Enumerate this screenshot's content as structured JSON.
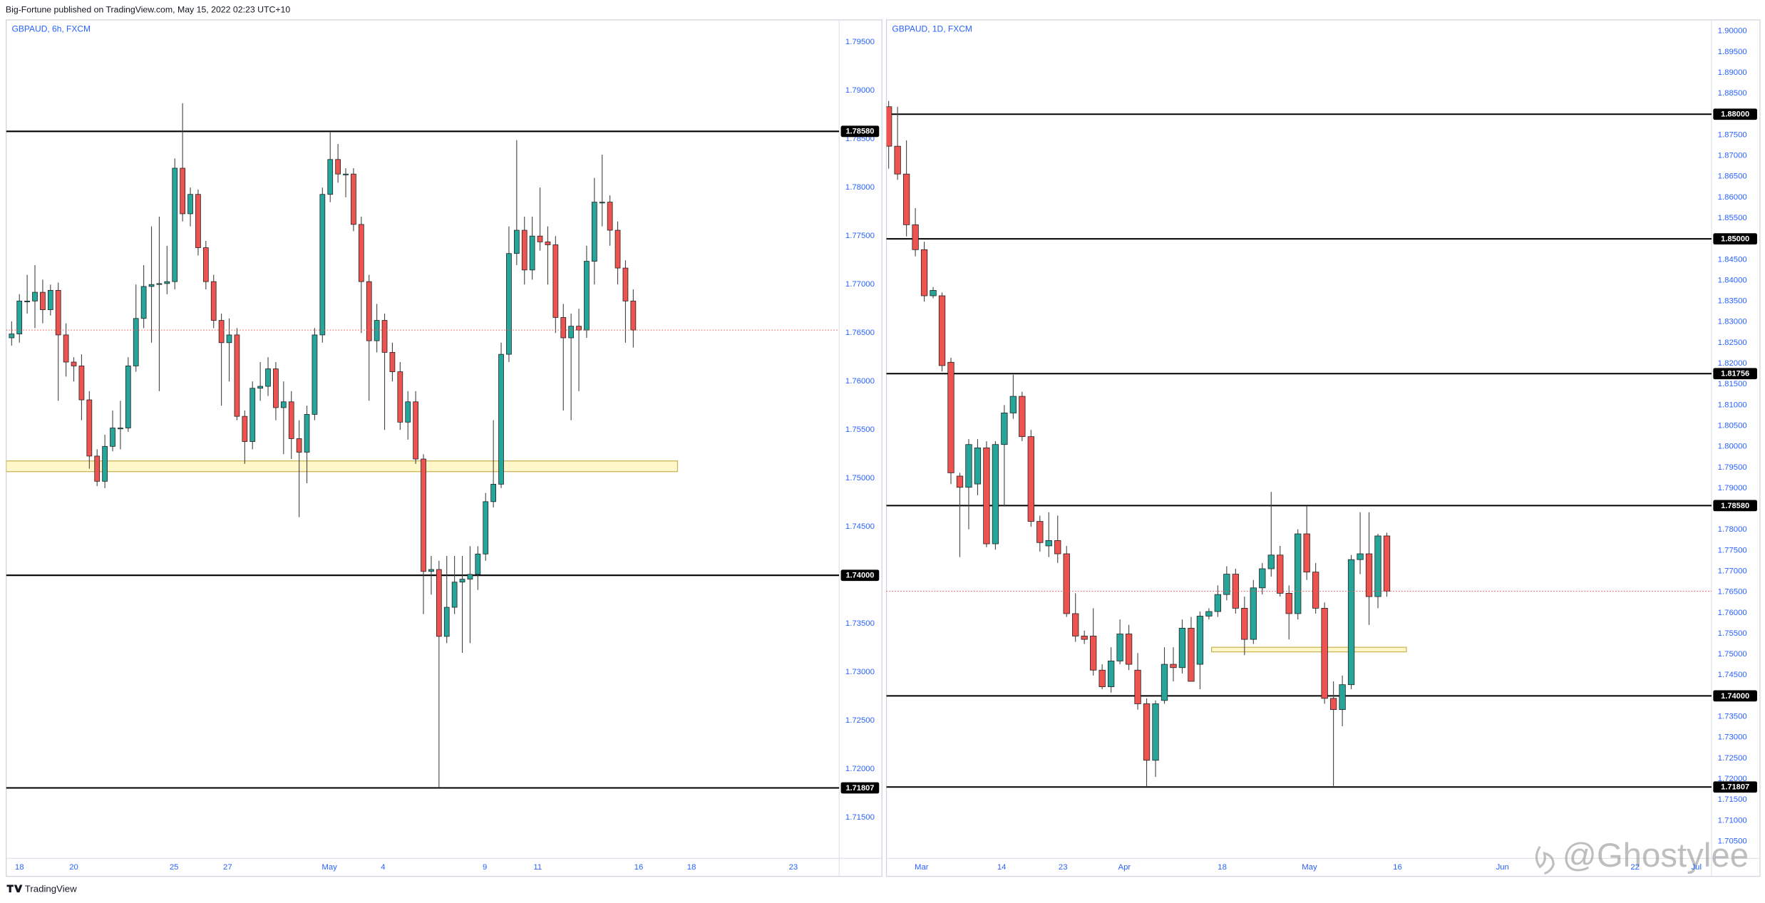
{
  "header": {
    "text": "Big-Fortune published on TradingView.com, May 15, 2022 02:23 UTC+10"
  },
  "footer": {
    "brand": "TradingView",
    "watermark": "@Ghostylee"
  },
  "chart_data": [
    {
      "type": "candlestick",
      "title": "GBPAUD, 6h, FXCM",
      "up_color": "#26a69a",
      "down_color": "#ef5350",
      "grid": false,
      "open": [
        1.7645,
        1.7649,
        1.7683,
        1.7683,
        1.7692,
        1.7674,
        1.7694,
        1.7648,
        1.762,
        1.7616,
        1.7581,
        1.7523,
        1.7497,
        1.7533,
        1.7552,
        1.7552,
        1.7616,
        1.7665,
        1.7698,
        1.77,
        1.7701,
        1.7703,
        1.782,
        1.7773,
        1.7793,
        1.7738,
        1.7703,
        1.7663,
        1.764,
        1.7648,
        1.7564,
        1.7538,
        1.7593,
        1.7595,
        1.7613,
        1.7573,
        1.7579,
        1.7541,
        1.7527,
        1.7566,
        1.7648,
        1.7793,
        1.7829,
        1.7814,
        1.7814,
        1.7762,
        1.7703,
        1.7642,
        1.7663,
        1.763,
        1.761,
        1.7558,
        1.7579,
        1.752,
        1.7404,
        1.7406,
        1.7337,
        1.7367,
        1.7393,
        1.7396,
        1.7401,
        1.7422,
        1.7476,
        1.7494,
        1.7628,
        1.7732,
        1.7756,
        1.7715,
        1.775,
        1.7744,
        1.7741,
        1.7666,
        1.7645,
        1.7657,
        1.7653,
        1.7724,
        1.7785,
        1.7785,
        1.7756,
        1.7717,
        1.7683
      ],
      "high": [
        1.7662,
        1.769,
        1.771,
        1.772,
        1.7705,
        1.77,
        1.7702,
        1.766,
        1.7625,
        1.7628,
        1.759,
        1.753,
        1.7545,
        1.757,
        1.758,
        1.7625,
        1.77,
        1.772,
        1.776,
        1.777,
        1.774,
        1.783,
        1.7887,
        1.78,
        1.7798,
        1.7745,
        1.771,
        1.767,
        1.7665,
        1.7655,
        1.757,
        1.76,
        1.762,
        1.7625,
        1.762,
        1.76,
        1.759,
        1.756,
        1.7575,
        1.7655,
        1.78,
        1.7857,
        1.7845,
        1.782,
        1.782,
        1.777,
        1.771,
        1.768,
        1.767,
        1.764,
        1.762,
        1.759,
        1.759,
        1.7525,
        1.742,
        1.7415,
        1.742,
        1.742,
        1.742,
        1.743,
        1.743,
        1.7485,
        1.756,
        1.764,
        1.776,
        1.7849,
        1.777,
        1.777,
        1.78,
        1.776,
        1.775,
        1.768,
        1.767,
        1.7675,
        1.774,
        1.781,
        1.7834,
        1.7792,
        1.7765,
        1.7725,
        1.7695
      ],
      "low": [
        1.7637,
        1.764,
        1.767,
        1.7655,
        1.766,
        1.7668,
        1.758,
        1.7605,
        1.76,
        1.756,
        1.751,
        1.7492,
        1.749,
        1.7528,
        1.753,
        1.7548,
        1.761,
        1.7655,
        1.764,
        1.759,
        1.769,
        1.7695,
        1.7765,
        1.776,
        1.773,
        1.7695,
        1.7655,
        1.7575,
        1.76,
        1.756,
        1.7515,
        1.753,
        1.758,
        1.7585,
        1.756,
        1.7525,
        1.752,
        1.746,
        1.7495,
        1.756,
        1.764,
        1.7785,
        1.7805,
        1.779,
        1.7755,
        1.765,
        1.758,
        1.763,
        1.755,
        1.76,
        1.755,
        1.754,
        1.7515,
        1.736,
        1.738,
        1.7181,
        1.733,
        1.736,
        1.732,
        1.733,
        1.7385,
        1.7415,
        1.747,
        1.749,
        1.762,
        1.772,
        1.77,
        1.7705,
        1.7735,
        1.77,
        1.765,
        1.757,
        1.756,
        1.759,
        1.7645,
        1.77,
        1.776,
        1.774,
        1.77,
        1.764,
        1.7635
      ],
      "close": [
        1.7649,
        1.7683,
        1.7683,
        1.7692,
        1.7674,
        1.7694,
        1.7648,
        1.762,
        1.7616,
        1.7581,
        1.7523,
        1.7497,
        1.7533,
        1.7552,
        1.7552,
        1.7616,
        1.7665,
        1.7698,
        1.77,
        1.7701,
        1.7703,
        1.782,
        1.7773,
        1.7793,
        1.7738,
        1.7703,
        1.7663,
        1.764,
        1.7648,
        1.7564,
        1.7538,
        1.7593,
        1.7595,
        1.7613,
        1.7573,
        1.7579,
        1.7541,
        1.7527,
        1.7566,
        1.7648,
        1.7793,
        1.7829,
        1.7814,
        1.7814,
        1.7762,
        1.7703,
        1.7642,
        1.7663,
        1.763,
        1.761,
        1.7558,
        1.7579,
        1.752,
        1.7404,
        1.7406,
        1.7337,
        1.7367,
        1.7393,
        1.7396,
        1.7401,
        1.7422,
        1.7476,
        1.7494,
        1.7628,
        1.7732,
        1.7756,
        1.7715,
        1.775,
        1.7744,
        1.7741,
        1.7666,
        1.7645,
        1.7657,
        1.7653,
        1.7724,
        1.7785,
        1.7785,
        1.7756,
        1.7717,
        1.7683,
        1.7653
      ],
      "xlim": [
        -0.7,
        106.5
      ],
      "xticks": [
        {
          "value": 1.0,
          "label": "18"
        },
        {
          "value": 8.0,
          "label": "20"
        },
        {
          "value": 20.9,
          "label": "25"
        },
        {
          "value": 27.8,
          "label": "27"
        },
        {
          "value": 40.9,
          "label": "May"
        },
        {
          "value": 47.8,
          "label": "4"
        },
        {
          "value": 60.9,
          "label": "9"
        },
        {
          "value": 67.7,
          "label": "11"
        },
        {
          "value": 80.7,
          "label": "16"
        },
        {
          "value": 87.5,
          "label": "18"
        },
        {
          "value": 100.6,
          "label": "23"
        }
      ],
      "ylim": [
        1.7108,
        1.7973
      ],
      "yticks": [
        {
          "value": 1.795,
          "label": "1.79500"
        },
        {
          "value": 1.79,
          "label": "1.79000"
        },
        {
          "value": 1.785,
          "label": "1.78500"
        },
        {
          "value": 1.78,
          "label": "1.78000"
        },
        {
          "value": 1.775,
          "label": "1.77500"
        },
        {
          "value": 1.77,
          "label": "1.77000"
        },
        {
          "value": 1.765,
          "label": "1.76500"
        },
        {
          "value": 1.76,
          "label": "1.76000"
        },
        {
          "value": 1.755,
          "label": "1.75500"
        },
        {
          "value": 1.75,
          "label": "1.75000"
        },
        {
          "value": 1.745,
          "label": "1.74500"
        },
        {
          "value": 1.74,
          "label": "1.74000"
        },
        {
          "value": 1.735,
          "label": "1.73500"
        },
        {
          "value": 1.73,
          "label": "1.73000"
        },
        {
          "value": 1.725,
          "label": "1.72500"
        },
        {
          "value": 1.72,
          "label": "1.72000"
        },
        {
          "value": 1.715,
          "label": "1.71500"
        }
      ],
      "levels": [
        {
          "value": 1.7858,
          "label": "1.78580"
        },
        {
          "value": 1.74,
          "label": "1.74000"
        },
        {
          "value": 1.71807,
          "label": "1.71807"
        }
      ],
      "zone": {
        "from": 1.7507,
        "to": 1.7518,
        "x": [
          -0.7,
          85.7
        ]
      }
    },
    {
      "type": "candlestick",
      "title": "GBPAUD, 1D, FXCM",
      "up_color": "#26a69a",
      "down_color": "#ef5350",
      "grid": false,
      "open": [
        1.8818,
        1.8723,
        1.8656,
        1.8534,
        1.8474,
        1.8363,
        1.8363,
        1.8203,
        1.7929,
        1.7902,
        1.791,
        1.7997,
        1.7766,
        1.8005,
        1.8081,
        1.8121,
        1.8024,
        1.782,
        1.7761,
        1.7774,
        1.7742,
        1.7598,
        1.7544,
        1.7544,
        1.7462,
        1.7422,
        1.7484,
        1.7549,
        1.7462,
        1.7381,
        1.7245,
        1.7389,
        1.7476,
        1.7468,
        1.7563,
        1.7476,
        1.7592,
        1.7603,
        1.7644,
        1.7693,
        1.7611,
        1.7536,
        1.766,
        1.7706,
        1.7739,
        1.7647,
        1.7598,
        1.779,
        1.7698,
        1.7611,
        1.7394,
        1.7367,
        1.7427,
        1.7728,
        1.7742,
        1.7639,
        1.7785
      ],
      "high": [
        1.8832,
        1.8818,
        1.8737,
        1.8574,
        1.8493,
        1.8384,
        1.8371,
        1.8214,
        1.7937,
        1.8018,
        1.8018,
        1.8013,
        1.8013,
        1.81,
        1.8173,
        1.8132,
        1.804,
        1.7834,
        1.7842,
        1.7834,
        1.7761,
        1.7647,
        1.7557,
        1.7611,
        1.7476,
        1.7517,
        1.7584,
        1.7571,
        1.7503,
        1.7394,
        1.7389,
        1.7517,
        1.7517,
        1.7584,
        1.759,
        1.7603,
        1.7611,
        1.7666,
        1.7712,
        1.7706,
        1.7639,
        1.7679,
        1.772,
        1.7891,
        1.7761,
        1.7666,
        1.7801,
        1.7856,
        1.772,
        1.7625,
        1.7435,
        1.7449,
        1.7739,
        1.7842,
        1.7842,
        1.779,
        1.7793
      ],
      "low": [
        1.8669,
        1.8642,
        1.8506,
        1.8458,
        1.8349,
        1.8357,
        1.8181,
        1.791,
        1.7734,
        1.7801,
        1.7883,
        1.7758,
        1.7752,
        1.7856,
        1.8067,
        1.8013,
        1.7807,
        1.7747,
        1.7734,
        1.772,
        1.759,
        1.753,
        1.7525,
        1.7449,
        1.7416,
        1.7408,
        1.7476,
        1.7462,
        1.7367,
        1.7181,
        1.7205,
        1.7381,
        1.7435,
        1.7454,
        1.7435,
        1.7416,
        1.7584,
        1.759,
        1.763,
        1.7598,
        1.7498,
        1.7525,
        1.7644,
        1.7687,
        1.7639,
        1.7536,
        1.7584,
        1.7679,
        1.7598,
        1.7381,
        1.7183,
        1.7327,
        1.7416,
        1.7693,
        1.7571,
        1.7611,
        1.7639
      ],
      "close": [
        1.8723,
        1.8656,
        1.8534,
        1.8474,
        1.8363,
        1.8376,
        1.8195,
        1.7937,
        1.7902,
        1.8005,
        1.7997,
        1.7766,
        1.8005,
        1.8081,
        1.8121,
        1.8024,
        1.782,
        1.7769,
        1.7774,
        1.7742,
        1.7598,
        1.7544,
        1.7536,
        1.7462,
        1.7422,
        1.7484,
        1.7549,
        1.7476,
        1.7381,
        1.7245,
        1.7381,
        1.7476,
        1.7468,
        1.7563,
        1.7435,
        1.7592,
        1.7603,
        1.7644,
        1.7693,
        1.7611,
        1.7536,
        1.766,
        1.7706,
        1.7739,
        1.7647,
        1.7598,
        1.779,
        1.7698,
        1.7611,
        1.7394,
        1.7367,
        1.7427,
        1.7728,
        1.7742,
        1.7639,
        1.7785,
        1.7652
      ],
      "xlim": [
        -0.25,
        92.5
      ],
      "xticks": [
        {
          "value": 3.7,
          "label": "Mar"
        },
        {
          "value": 12.7,
          "label": "14"
        },
        {
          "value": 19.6,
          "label": "23"
        },
        {
          "value": 26.5,
          "label": "Apr"
        },
        {
          "value": 37.5,
          "label": "18"
        },
        {
          "value": 47.3,
          "label": "May"
        },
        {
          "value": 57.2,
          "label": "16"
        },
        {
          "value": 69.0,
          "label": "Jun"
        },
        {
          "value": 83.9,
          "label": "22"
        },
        {
          "value": 90.8,
          "label": "Jul"
        }
      ],
      "ylim": [
        1.7009,
        1.9027
      ],
      "yticks": [
        {
          "value": 1.9,
          "label": "1.90000"
        },
        {
          "value": 1.895,
          "label": "1.89500"
        },
        {
          "value": 1.89,
          "label": "1.89000"
        },
        {
          "value": 1.885,
          "label": "1.88500"
        },
        {
          "value": 1.88,
          "label": "1.88000"
        },
        {
          "value": 1.875,
          "label": "1.87500"
        },
        {
          "value": 1.87,
          "label": "1.87000"
        },
        {
          "value": 1.865,
          "label": "1.86500"
        },
        {
          "value": 1.86,
          "label": "1.86000"
        },
        {
          "value": 1.855,
          "label": "1.85500"
        },
        {
          "value": 1.85,
          "label": "1.85000"
        },
        {
          "value": 1.845,
          "label": "1.84500"
        },
        {
          "value": 1.84,
          "label": "1.84000"
        },
        {
          "value": 1.835,
          "label": "1.83500"
        },
        {
          "value": 1.83,
          "label": "1.83000"
        },
        {
          "value": 1.825,
          "label": "1.82500"
        },
        {
          "value": 1.82,
          "label": "1.82000"
        },
        {
          "value": 1.815,
          "label": "1.81500"
        },
        {
          "value": 1.81,
          "label": "1.81000"
        },
        {
          "value": 1.805,
          "label": "1.80500"
        },
        {
          "value": 1.8,
          "label": "1.80000"
        },
        {
          "value": 1.795,
          "label": "1.79500"
        },
        {
          "value": 1.79,
          "label": "1.79000"
        },
        {
          "value": 1.785,
          "label": "1.78500"
        },
        {
          "value": 1.78,
          "label": "1.78000"
        },
        {
          "value": 1.775,
          "label": "1.77500"
        },
        {
          "value": 1.77,
          "label": "1.77000"
        },
        {
          "value": 1.765,
          "label": "1.76500"
        },
        {
          "value": 1.76,
          "label": "1.76000"
        },
        {
          "value": 1.755,
          "label": "1.75500"
        },
        {
          "value": 1.75,
          "label": "1.75000"
        },
        {
          "value": 1.745,
          "label": "1.74500"
        },
        {
          "value": 1.74,
          "label": "1.74000"
        },
        {
          "value": 1.735,
          "label": "1.73500"
        },
        {
          "value": 1.73,
          "label": "1.73000"
        },
        {
          "value": 1.725,
          "label": "1.72500"
        },
        {
          "value": 1.72,
          "label": "1.72000"
        },
        {
          "value": 1.715,
          "label": "1.71500"
        },
        {
          "value": 1.71,
          "label": "1.71000"
        },
        {
          "value": 1.705,
          "label": "1.70500"
        }
      ],
      "levels": [
        {
          "value": 1.88,
          "label": "1.88000"
        },
        {
          "value": 1.85,
          "label": "1.85000"
        },
        {
          "value": 1.81756,
          "label": "1.81756"
        },
        {
          "value": 1.7858,
          "label": "1.78580"
        },
        {
          "value": 1.74,
          "label": "1.74000"
        },
        {
          "value": 1.71807,
          "label": "1.71807"
        }
      ],
      "zone": {
        "from": 1.7506,
        "to": 1.7517,
        "x": [
          36.3,
          58.2
        ]
      }
    }
  ]
}
